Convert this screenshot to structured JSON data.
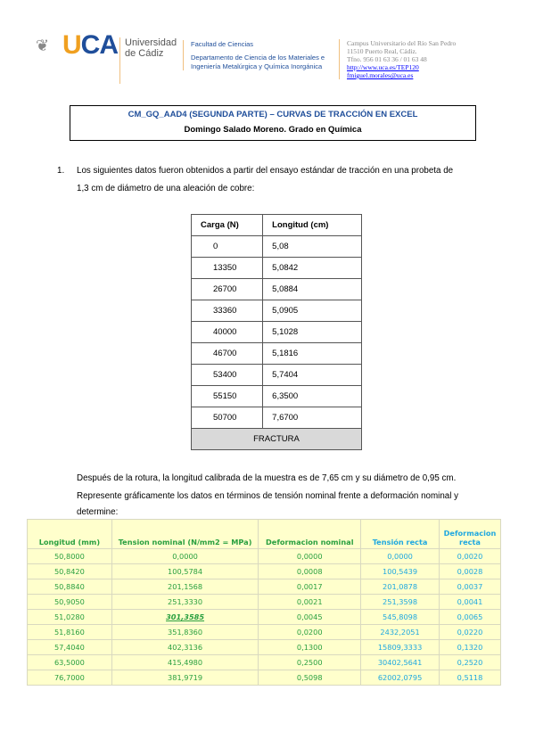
{
  "header": {
    "logo_text": "UCA",
    "university": [
      "Universidad",
      "de Cádiz"
    ],
    "faculty": "Facultad de Ciencias",
    "department": [
      "Departamento de Ciencia de los Materiales e",
      "Ingeniería Metalúrgica y Química Inorgánica"
    ],
    "address": [
      "Campus Universitario del Río San Pedro",
      "11510 Puerto Real, Cádiz.",
      "Tfno. 956 01 63 36 / 01 63 48"
    ],
    "link": "http://www.uca.es/TEP120",
    "email": "fmiguel.morales@uca.es"
  },
  "title": {
    "line1": "CM_GQ_AAD4 (SEGUNDA PARTE) – CURVAS DE TRACCIÓN EN EXCEL",
    "line2": "Domingo Salado Moreno. Grado en Química"
  },
  "question": {
    "number": "1.",
    "text1": "Los siguientes datos fueron obtenidos a partir del ensayo estándar de tracción en una probeta de",
    "text2": "1,3 cm de diámetro de una aleación de cobre:"
  },
  "data_table": {
    "headers": [
      "Carga (N)",
      "Longitud (cm)"
    ],
    "rows": [
      [
        "0",
        "5,08"
      ],
      [
        "13350",
        "5,0842"
      ],
      [
        "26700",
        "5,0884"
      ],
      [
        "33360",
        "5,0905"
      ],
      [
        "40000",
        "5,1028"
      ],
      [
        "46700",
        "5,1816"
      ],
      [
        "53400",
        "5,7404"
      ],
      [
        "55150",
        "6,3500"
      ],
      [
        "50700",
        "7,6700"
      ]
    ],
    "footer": "FRACTURA"
  },
  "after": [
    "Después de la rotura, la longitud calibrada de la muestra es de 7,65 cm y su diámetro de 0,95 cm.",
    "Represente gráficamente los datos en términos de tensión nominal frente a deformación nominal y",
    "determine:"
  ],
  "excel_table": {
    "headers": [
      "Longitud (mm)",
      "Tension nominal (N/mm2 = MPa)",
      "Deformacion nominal",
      "Tensión recta",
      "Deformacion recta"
    ],
    "rows": [
      [
        "50,8000",
        "0,0000",
        "0,0000",
        "0,0000",
        "0,0020"
      ],
      [
        "50,8420",
        "100,5784",
        "0,0008",
        "100,5439",
        "0,0028"
      ],
      [
        "50,8840",
        "201,1568",
        "0,0017",
        "201,0878",
        "0,0037"
      ],
      [
        "50,9050",
        "251,3330",
        "0,0021",
        "251,3598",
        "0,0041"
      ],
      [
        "51,0280",
        "301,3585",
        "0,0045",
        "545,8098",
        "0,0065"
      ],
      [
        "51,8160",
        "351,8360",
        "0,0200",
        "2432,2051",
        "0,0220"
      ],
      [
        "57,4040",
        "402,3136",
        "0,1300",
        "15809,3333",
        "0,1320"
      ],
      [
        "63,5000",
        "415,4980",
        "0,2500",
        "30402,5641",
        "0,2520"
      ],
      [
        "76,7000",
        "381,9719",
        "0,5098",
        "62002,0795",
        "0,5118"
      ]
    ],
    "colors": {
      "green": "#2aa040",
      "blue": "#1fa8e0",
      "background": "#ffffcc"
    }
  }
}
